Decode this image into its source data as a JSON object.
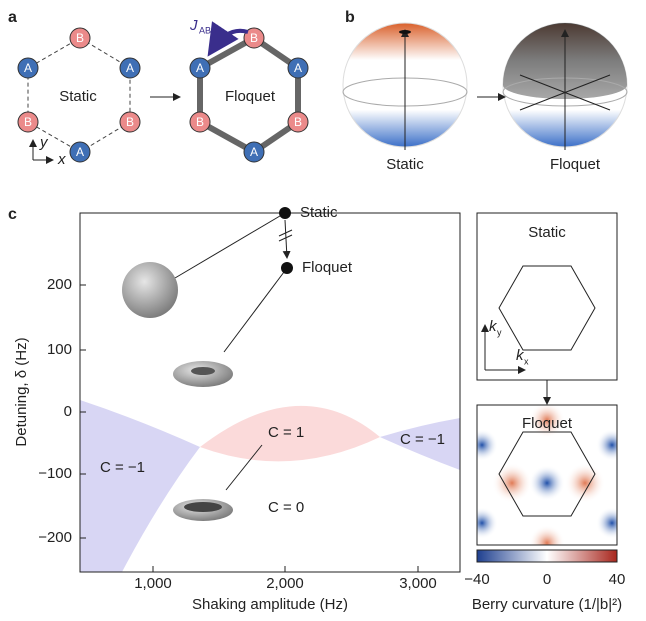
{
  "panels": {
    "a": {
      "label": "a",
      "static_text": "Static",
      "floquet_text": "Floquet",
      "site_a": "A",
      "site_b": "B",
      "hopping": "J",
      "hopping_sub": "AB",
      "axis_x": "x",
      "axis_y": "y"
    },
    "b": {
      "label": "b",
      "static_text": "Static",
      "floquet_text": "Floquet"
    },
    "c": {
      "label": "c",
      "y_label": "Detuning, δ (Hz)",
      "x_label": "Shaking amplitude (Hz)",
      "yticks": [
        "200",
        "100",
        "0",
        "−100",
        "−200"
      ],
      "xticks": [
        "1,000",
        "2,000",
        "3,000"
      ],
      "static_point": "Static",
      "floquet_point": "Floquet",
      "regions": [
        "C = −1",
        "C = 1",
        "C = −1",
        "C = 0"
      ],
      "bz_static": "Static",
      "bz_floquet": "Floquet",
      "kx": "k",
      "kx_sub": "x",
      "ky": "k",
      "ky_sub": "y",
      "colorbar_ticks": [
        "−40",
        "0",
        "40"
      ],
      "colorbar_label": "Berry curvature (1/|b|²)"
    }
  }
}
